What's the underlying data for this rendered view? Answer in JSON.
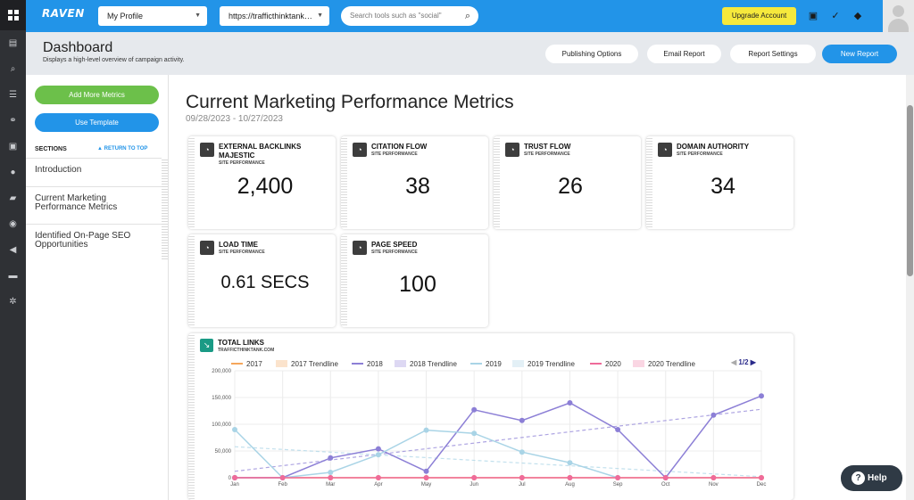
{
  "topbar": {
    "brand": "RAVEN",
    "profile_select": "My Profile",
    "url_select": "https://trafficthinktank…",
    "search_placeholder": "Search tools such as \"social\"",
    "upgrade_label": "Upgrade Account"
  },
  "header": {
    "title": "Dashboard",
    "subtitle": "Displays a high-level overview of campaign activity.",
    "buttons": [
      "Publishing Options",
      "Email Report",
      "Report Settings",
      "New Report"
    ]
  },
  "sidebar": {
    "add_metrics": "Add More Metrics",
    "use_template": "Use Template",
    "sections_label": "SECTIONS",
    "return_to_top": "▲ RETURN TO TOP",
    "items": [
      "Introduction",
      "Current Marketing Performance Metrics",
      "Identified On-Page SEO Opportunities"
    ]
  },
  "main": {
    "title": "Current Marketing Performance Metrics",
    "date_range": "09/28/2023 - 10/27/2023",
    "cards": [
      {
        "title": "EXTERNAL BACKLINKS MAJESTIC",
        "sub": "SITE PERFORMANCE",
        "value": "2,400"
      },
      {
        "title": "CITATION FLOW",
        "sub": "SITE PERFORMANCE",
        "value": "38"
      },
      {
        "title": "TRUST FLOW",
        "sub": "SITE PERFORMANCE",
        "value": "26"
      },
      {
        "title": "DOMAIN AUTHORITY",
        "sub": "SITE PERFORMANCE",
        "value": "34"
      },
      {
        "title": "LOAD TIME",
        "sub": "SITE PERFORMANCE",
        "value": "0.61 SECS"
      },
      {
        "title": "PAGE SPEED",
        "sub": "SITE PERFORMANCE",
        "value": "100"
      }
    ]
  },
  "links_chart": {
    "title": "TOTAL LINKS",
    "subtitle": "TRAFFICTHINKTANK.COM",
    "legend": [
      "2017",
      "2017 Trendline",
      "2018",
      "2018 Trendline",
      "2019",
      "2019 Trendline",
      "2020",
      "2020 Trendline"
    ],
    "pager": "1/2"
  },
  "chart_data": {
    "type": "line",
    "title": "TOTAL LINKS",
    "categories": [
      "Jan",
      "Feb",
      "Mar",
      "Apr",
      "May",
      "Jun",
      "Jul",
      "Aug",
      "Sep",
      "Oct",
      "Nov",
      "Dec"
    ],
    "ylim": [
      0,
      200000
    ],
    "yticks": [
      "0",
      "50,000",
      "100,000",
      "150,000",
      "200,000"
    ],
    "series": [
      {
        "name": "2017",
        "color": "#f5a65b",
        "values": [
          0,
          0,
          0,
          0,
          0,
          0,
          0,
          0,
          0,
          0,
          0,
          0
        ]
      },
      {
        "name": "2018",
        "color": "#8c7fd6",
        "values": [
          0,
          0,
          37000,
          54000,
          12000,
          127000,
          107000,
          140000,
          90000,
          0,
          117000,
          153000
        ],
        "trend": [
          12000,
          128000
        ]
      },
      {
        "name": "2019",
        "color": "#a9d4e6",
        "values": [
          90000,
          0,
          10000,
          43000,
          89000,
          83000,
          48000,
          28000,
          0,
          null,
          null,
          null
        ],
        "trend": [
          58000,
          2000
        ]
      },
      {
        "name": "2020",
        "color": "#ef6b9a",
        "values": [
          0,
          0,
          0,
          0,
          0,
          0,
          0,
          0,
          0,
          0,
          0,
          0
        ]
      }
    ],
    "legend_placement": "top",
    "grid": true
  }
}
